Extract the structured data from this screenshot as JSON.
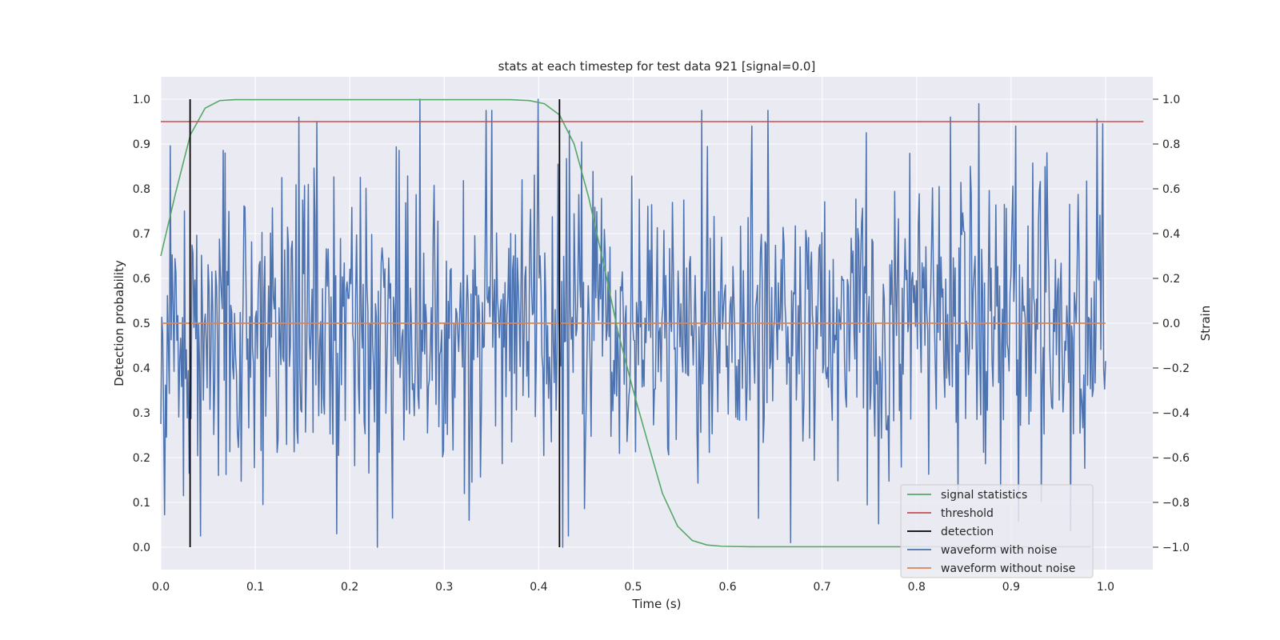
{
  "chart_data": {
    "type": "line",
    "title": "stats at each timestep for test data 921 [signal=0.0]",
    "xlabel": "Time (s)",
    "ylabel": "Detection probability",
    "y2label": "Strain",
    "xlim": [
      0.0,
      1.05
    ],
    "ylim": [
      -0.05,
      1.05
    ],
    "y2lim": [
      -1.1,
      1.1
    ],
    "xticks": [
      "0.0",
      "0.1",
      "0.2",
      "0.3",
      "0.4",
      "0.5",
      "0.6",
      "0.7",
      "0.8",
      "0.9",
      "1.0"
    ],
    "yticks": [
      "0.0",
      "0.1",
      "0.2",
      "0.3",
      "0.4",
      "0.5",
      "0.6",
      "0.7",
      "0.8",
      "0.9",
      "1.0"
    ],
    "y2ticks": [
      "−1.0",
      "−0.8",
      "−0.6",
      "−0.4",
      "−0.2",
      "0.0",
      "0.2",
      "0.4",
      "0.6",
      "0.8",
      "1.0"
    ],
    "grid": true,
    "legend_position": "lower-right",
    "colors": {
      "background": "#eaeaf2",
      "grid": "#ffffff",
      "signal_statistics": "#55a868",
      "threshold": "#c44e52",
      "detection": "#000000",
      "waveform_with_noise": "#4c72b0",
      "waveform_without_noise": "#dd8452"
    },
    "series": [
      {
        "name": "signal statistics",
        "axis": "left",
        "x": [
          0.0,
          0.0156,
          0.0312,
          0.0469,
          0.0625,
          0.0781,
          0.1,
          0.2,
          0.3,
          0.37,
          0.39,
          0.406,
          0.422,
          0.4375,
          0.453,
          0.469,
          0.484,
          0.5,
          0.516,
          0.531,
          0.547,
          0.5625,
          0.578,
          0.594,
          0.625,
          0.7,
          0.8,
          0.9,
          0.984
        ],
        "values": [
          0.65,
          0.79,
          0.92,
          0.98,
          0.997,
          0.999,
          0.999,
          0.999,
          0.999,
          0.999,
          0.997,
          0.99,
          0.965,
          0.9,
          0.78,
          0.63,
          0.48,
          0.35,
          0.23,
          0.12,
          0.047,
          0.015,
          0.005,
          0.002,
          0.001,
          0.001,
          0.001,
          0.001,
          0.001
        ]
      },
      {
        "name": "threshold",
        "axis": "left",
        "x": [
          0.0,
          1.04
        ],
        "values": [
          0.95,
          0.95
        ]
      },
      {
        "name": "detection",
        "axis": "left",
        "type": "vlines",
        "x": [
          0.031,
          0.422
        ],
        "ymin": 0.0,
        "ymax": 1.0
      },
      {
        "name": "waveform with noise",
        "axis": "right",
        "type": "noise",
        "x_start": 0.0,
        "x_end": 1.0,
        "n_points": 1000,
        "std": 0.33,
        "seed": 921,
        "spikes": [
          {
            "x": 0.0,
            "value": -0.45
          },
          {
            "x": 0.024,
            "value": -0.77
          },
          {
            "x": 0.061,
            "value": -0.68
          },
          {
            "x": 0.068,
            "value": 0.76
          },
          {
            "x": 0.108,
            "value": -0.81
          },
          {
            "x": 0.146,
            "value": 0.92
          },
          {
            "x": 0.165,
            "value": 0.9
          },
          {
            "x": 0.186,
            "value": -0.94
          },
          {
            "x": 0.229,
            "value": -1.0
          },
          {
            "x": 0.245,
            "value": -0.87
          },
          {
            "x": 0.274,
            "value": 1.0
          },
          {
            "x": 0.326,
            "value": -0.88
          },
          {
            "x": 0.399,
            "value": 1.0
          },
          {
            "x": 0.425,
            "value": -1.0
          },
          {
            "x": 0.432,
            "value": 0.86
          },
          {
            "x": 0.626,
            "value": 0.88
          },
          {
            "x": 0.643,
            "value": 0.95
          },
          {
            "x": 0.667,
            "value": -0.98
          },
          {
            "x": 0.747,
            "value": 0.85
          },
          {
            "x": 0.836,
            "value": 0.92
          },
          {
            "x": 0.866,
            "value": 0.98
          },
          {
            "x": 0.889,
            "value": -0.73
          },
          {
            "x": 0.905,
            "value": 0.88
          },
          {
            "x": 0.997,
            "value": 0.89
          }
        ]
      },
      {
        "name": "waveform without noise",
        "axis": "right",
        "x": [
          0.0,
          1.0
        ],
        "values": [
          0.0,
          0.0
        ]
      }
    ],
    "legend": [
      "signal statistics",
      "threshold",
      "detection",
      "waveform with noise",
      "waveform without noise"
    ]
  }
}
